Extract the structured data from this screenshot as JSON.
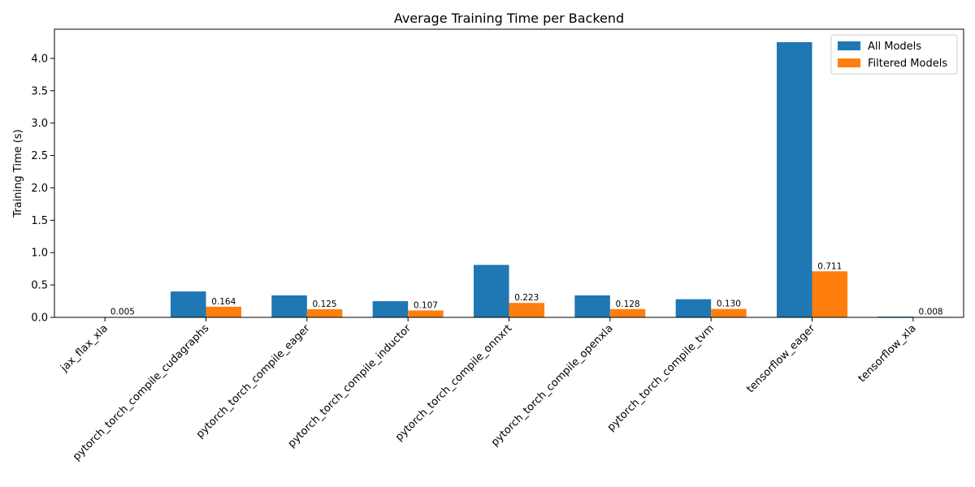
{
  "chart_data": {
    "type": "bar",
    "title": "Average Training Time per Backend",
    "xlabel": "",
    "ylabel": "Training Time (s)",
    "ylim": [
      0,
      4.45
    ],
    "yticks": [
      "0.0",
      "0.5",
      "1.0",
      "1.5",
      "2.0",
      "2.5",
      "3.0",
      "3.5",
      "4.0"
    ],
    "categories": [
      "jax_flax_xla",
      "pytorch_torch_compile_cudagraphs",
      "pytorch_torch_compile_eager",
      "pytorch_torch_compile_inductor",
      "pytorch_torch_compile_onnxrt",
      "pytorch_torch_compile_openxla",
      "pytorch_torch_compile_tvm",
      "tensorflow_eager",
      "tensorflow_xla"
    ],
    "series": [
      {
        "name": "All Models",
        "color": "#1f77b4",
        "values": [
          0.0,
          0.4,
          0.34,
          0.25,
          0.81,
          0.34,
          0.28,
          4.25,
          0.012
        ]
      },
      {
        "name": "Filtered Models",
        "color": "#ff7f0e",
        "values": [
          0.005,
          0.164,
          0.125,
          0.107,
          0.223,
          0.128,
          0.13,
          0.711,
          0.008
        ],
        "labels": [
          "0.005",
          "0.164",
          "0.125",
          "0.107",
          "0.223",
          "0.128",
          "0.130",
          "0.711",
          "0.008"
        ]
      }
    ],
    "legend": {
      "position": "top-right"
    },
    "grid": false
  }
}
